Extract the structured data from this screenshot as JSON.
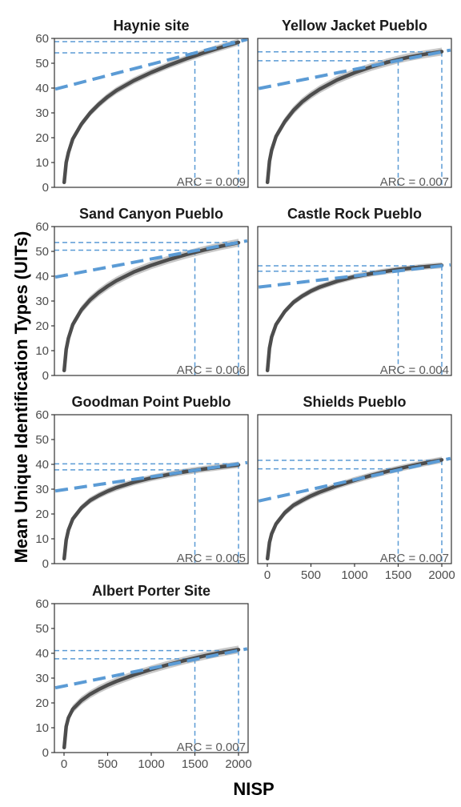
{
  "chart_data": {
    "type": "line",
    "xlabel": "NISP",
    "ylabel": "Mean Unique Identification Types (UITs)",
    "xlim": [
      0,
      2000
    ],
    "ylim": [
      0,
      60
    ],
    "x_ticks": [
      "0",
      "500",
      "1000",
      "1500",
      "2000"
    ],
    "y_ticks": [
      "0",
      "10",
      "20",
      "30",
      "40",
      "50",
      "60"
    ],
    "colors": {
      "curve": "#4d4d4d",
      "band": "#c8c8c8",
      "tangent": "#5b9bd5",
      "border": "#333333"
    },
    "panels": [
      {
        "title": "Haynie site",
        "label": "ARC = 0.009",
        "curve_x": [
          2,
          25,
          50,
          100,
          200,
          300,
          400,
          500,
          600,
          800,
          1000,
          1200,
          1400,
          1500,
          1600,
          1800,
          2000
        ],
        "curve_y": [
          2,
          10,
          14,
          19.5,
          25.5,
          30,
          33.5,
          36.5,
          39,
          43,
          46.3,
          49.2,
          51.8,
          53,
          54.2,
          56.4,
          58.5
        ],
        "band_halfwidth": 1.4,
        "tangent_intercept": 40.5,
        "ref_1500": 54.2,
        "ref_2000": 58.7
      },
      {
        "title": "Yellow Jacket Pueblo",
        "label": "ARC = 0.007",
        "curve_x": [
          2,
          25,
          50,
          100,
          200,
          300,
          400,
          500,
          600,
          800,
          1000,
          1200,
          1400,
          1500,
          1600,
          1800,
          2000
        ],
        "curve_y": [
          2,
          10.5,
          15,
          20.5,
          26.5,
          31,
          34.5,
          37.2,
          39.5,
          43.3,
          46.2,
          48.6,
          50.6,
          51.5,
          52.3,
          53.6,
          54.7
        ],
        "band_halfwidth": 1.6,
        "tangent_intercept": 40.5,
        "ref_1500": 51,
        "ref_2000": 54.6
      },
      {
        "title": "Sand Canyon Pueblo",
        "label": "ARC = 0.006",
        "curve_x": [
          2,
          25,
          50,
          100,
          200,
          300,
          400,
          500,
          600,
          800,
          1000,
          1200,
          1400,
          1500,
          1600,
          1800,
          2000
        ],
        "curve_y": [
          2,
          10.5,
          15,
          20.5,
          26.5,
          30.5,
          33.5,
          36,
          38.2,
          41.7,
          44.4,
          46.7,
          48.7,
          49.6,
          50.5,
          52.1,
          53.5
        ],
        "band_halfwidth": 1.6,
        "tangent_intercept": 40.3,
        "ref_1500": 50.5,
        "ref_2000": 53.6
      },
      {
        "title": "Castle Rock Pueblo",
        "label": "ARC = 0.004",
        "curve_x": [
          2,
          25,
          50,
          100,
          200,
          300,
          400,
          500,
          600,
          800,
          1000,
          1200,
          1400,
          1500,
          1600,
          1800,
          2000
        ],
        "curve_y": [
          2,
          11,
          15.5,
          20.5,
          25.8,
          29.5,
          32,
          34,
          35.6,
          38,
          39.8,
          41.1,
          42.2,
          42.7,
          43.1,
          43.8,
          44.4
        ],
        "band_halfwidth": 1.2,
        "tangent_intercept": 36,
        "ref_1500": 42,
        "ref_2000": 44.2
      },
      {
        "title": "Goodman Point Pueblo",
        "label": "ARC = 0.005",
        "curve_x": [
          2,
          25,
          50,
          100,
          200,
          300,
          400,
          500,
          600,
          800,
          1000,
          1200,
          1400,
          1500,
          1600,
          1800,
          2000
        ],
        "curve_y": [
          2,
          9.5,
          13.5,
          18,
          22.5,
          25.5,
          27.5,
          29.2,
          30.6,
          32.8,
          34.5,
          35.9,
          37.1,
          37.6,
          38.1,
          39,
          39.8
        ],
        "band_halfwidth": 1.3,
        "tangent_intercept": 29.8,
        "ref_1500": 37.8,
        "ref_2000": 40.2
      },
      {
        "title": "Shields Pueblo",
        "label": "ARC = 0.007",
        "curve_x": [
          2,
          25,
          50,
          100,
          200,
          300,
          400,
          500,
          600,
          800,
          1000,
          1200,
          1400,
          1500,
          1600,
          1800,
          2000
        ],
        "curve_y": [
          2,
          8.5,
          12,
          16,
          20.5,
          23.5,
          25.5,
          27.3,
          28.8,
          31.4,
          33.6,
          35.6,
          37.4,
          38.2,
          39,
          40.5,
          41.8
        ],
        "band_halfwidth": 1.3,
        "tangent_intercept": 26,
        "ref_1500": 38.2,
        "ref_2000": 41.6
      },
      {
        "title": "Albert Porter Site",
        "label": "ARC = 0.007",
        "curve_x": [
          2,
          25,
          50,
          100,
          200,
          300,
          400,
          500,
          600,
          800,
          1000,
          1200,
          1400,
          1500,
          1600,
          1800,
          2000
        ],
        "curve_y": [
          2,
          10.5,
          14,
          17.5,
          21,
          23.5,
          25.5,
          27.2,
          28.7,
          31.3,
          33.5,
          35.5,
          37.3,
          38.1,
          38.9,
          40.3,
          41.5
        ],
        "band_halfwidth": 1.6,
        "tangent_intercept": 26.8,
        "ref_1500": 37.8,
        "ref_2000": 41.1
      }
    ]
  }
}
